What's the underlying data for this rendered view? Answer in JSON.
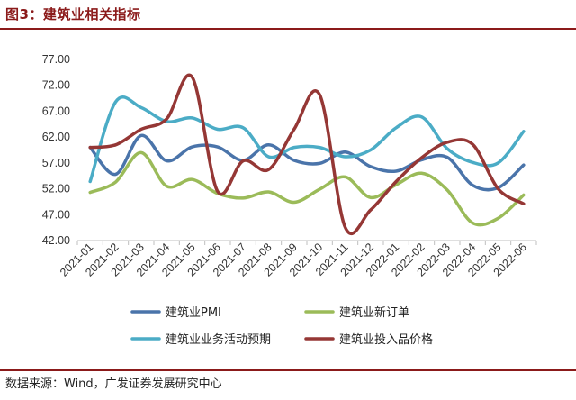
{
  "figure": {
    "title": "图3：建筑业相关指标",
    "source": "数据来源：Wind，广发证券发展研究中心"
  },
  "chart_data": {
    "type": "line",
    "title": "建筑业相关指标",
    "xlabel": "",
    "ylabel": "",
    "ylim": [
      42,
      77
    ],
    "yticks": [
      "77.00",
      "72.00",
      "67.00",
      "62.00",
      "57.00",
      "52.00",
      "47.00",
      "42.00"
    ],
    "grid": false,
    "categories": [
      "2021-01",
      "2021-02",
      "2021-03",
      "2021-04",
      "2021-05",
      "2021-06",
      "2021-07",
      "2021-08",
      "2021-09",
      "2021-10",
      "2021-11",
      "2021-12",
      "2022-01",
      "2022-02",
      "2022-03",
      "2022-04",
      "2022-05",
      "2022-06"
    ],
    "series": [
      {
        "name": "建筑业PMI",
        "color": "#4a74aa",
        "values": [
          60.0,
          54.8,
          62.3,
          57.4,
          60.1,
          60.1,
          57.5,
          60.5,
          57.5,
          56.9,
          59.1,
          56.3,
          55.4,
          57.6,
          58.1,
          52.7,
          52.2,
          56.6
        ]
      },
      {
        "name": "建筑业新订单",
        "color": "#9bbb59",
        "values": [
          51.3,
          53.3,
          59.0,
          52.5,
          53.8,
          51.1,
          50.2,
          51.4,
          49.4,
          51.9,
          54.3,
          50.3,
          52.8,
          55.0,
          51.8,
          45.4,
          46.3,
          50.8
        ]
      },
      {
        "name": "建筑业业务活动预期",
        "color": "#4bacc6",
        "values": [
          53.4,
          68.8,
          67.7,
          65.0,
          65.7,
          63.5,
          63.8,
          58.2,
          60.0,
          60.0,
          58.2,
          59.5,
          63.8,
          65.9,
          59.8,
          57.1,
          57.0,
          63.1
        ]
      },
      {
        "name": "建筑业投入品价格",
        "color": "#953735",
        "values": [
          60.0,
          60.5,
          63.5,
          65.5,
          73.6,
          51.5,
          57.4,
          55.7,
          63.5,
          70.2,
          44.6,
          47.9,
          53.4,
          58.0,
          61.0,
          60.6,
          52.0,
          49.1
        ]
      }
    ],
    "legend": {
      "position": "bottom",
      "columns": 2
    }
  }
}
